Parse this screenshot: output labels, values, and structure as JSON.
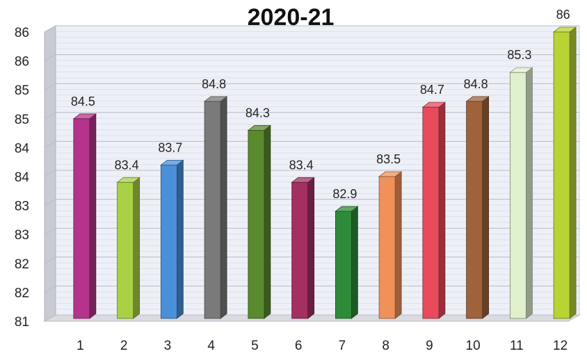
{
  "chart_data": {
    "type": "bar",
    "title": "2020-21",
    "xlabel": "",
    "ylabel": "",
    "categories": [
      "1",
      "2",
      "3",
      "4",
      "5",
      "6",
      "7",
      "8",
      "9",
      "10",
      "11",
      "12"
    ],
    "values": [
      84.5,
      83.4,
      83.7,
      84.8,
      84.3,
      83.4,
      82.9,
      83.5,
      84.7,
      84.8,
      85.3,
      86
    ],
    "data_labels": [
      "84.5",
      "83.4",
      "83.7",
      "84.8",
      "84.3",
      "83.4",
      "82.9",
      "83.5",
      "84.7",
      "84.8",
      "85.3",
      "86"
    ],
    "ylim": [
      81,
      86
    ],
    "y_ticks": [
      81,
      81.5,
      82,
      82.5,
      83,
      83.5,
      84,
      84.5,
      85,
      85.5,
      86
    ],
    "y_tick_labels": [
      "81",
      "82",
      "82",
      "83",
      "83",
      "84",
      "84",
      "85",
      "85",
      "86",
      "86"
    ],
    "grid": true,
    "legend": "none",
    "bar_colors": [
      "#b5338a",
      "#a8d145",
      "#4a90d9",
      "#7a7a7a",
      "#5a8a2e",
      "#a3305e",
      "#2e8b3a",
      "#f0915a",
      "#e84a5c",
      "#a0623a",
      "#dff0cc",
      "#b8d334"
    ]
  }
}
